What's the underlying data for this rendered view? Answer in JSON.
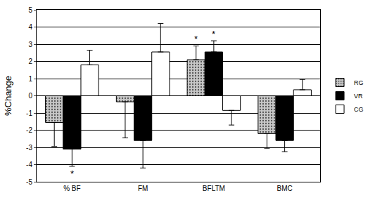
{
  "chart_data": {
    "type": "bar",
    "y_label": "%Change",
    "categories": [
      "% BF",
      "FM",
      "BFLTM",
      "BMC"
    ],
    "series": [
      {
        "name": "RG",
        "color": "#c8c8c8",
        "marker": "dotted",
        "values": [
          -1.55,
          -0.35,
          2.1,
          -2.2
        ],
        "errors": [
          1.4,
          2.1,
          0.8,
          0.85
        ]
      },
      {
        "name": "VR",
        "color": "#000000",
        "values": [
          -3.1,
          -2.6,
          2.55,
          -2.6
        ],
        "errors": [
          1.0,
          1.6,
          0.65,
          0.65
        ]
      },
      {
        "name": "CG",
        "color": "#ffffff",
        "values": [
          1.8,
          2.55,
          -0.85,
          0.35
        ],
        "errors": [
          0.85,
          1.65,
          0.85,
          0.6
        ]
      }
    ],
    "annotations": [
      {
        "text": "*",
        "category": "% BF",
        "series": "VR"
      },
      {
        "text": "*",
        "category": "BFLTM",
        "series": "RG"
      },
      {
        "text": "*",
        "category": "BFLTM",
        "series": "VR"
      }
    ],
    "ylim": [
      -5,
      5
    ],
    "yticks": [
      -5,
      -4,
      -3,
      -2,
      -1,
      0,
      1,
      2,
      3,
      4,
      5
    ],
    "grid": true,
    "legend": "right"
  }
}
